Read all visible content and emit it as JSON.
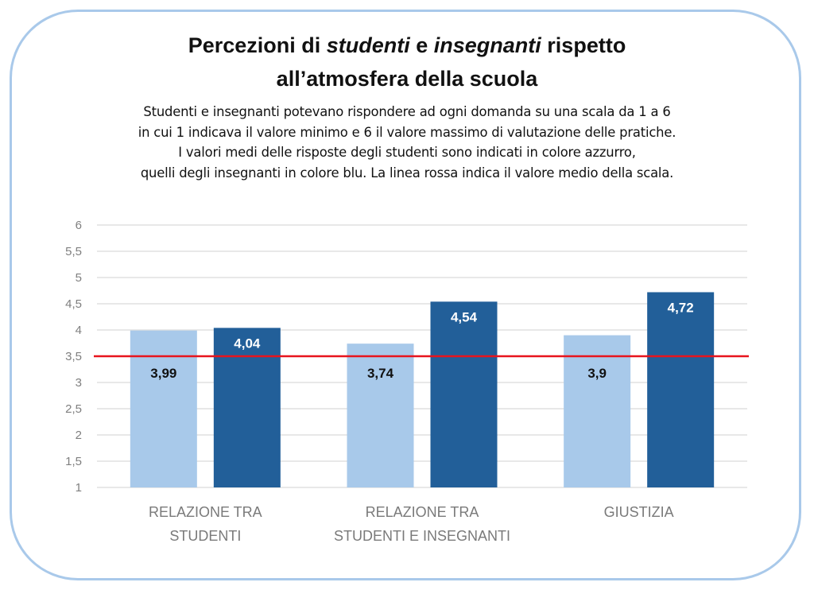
{
  "title": {
    "part1": "Percezioni di ",
    "italic1": "studenti",
    "part2": " e ",
    "italic2": "insegnanti",
    "part3": " rispetto",
    "line2": "all’atmosfera della scuola"
  },
  "description": [
    "Studenti e insegnanti potevano rispondere ad ogni domanda su una scala da 1 a 6",
    "in cui 1 indicava il valore minimo e 6 il valore massimo di valutazione delle pratiche.",
    "I valori medi delle risposte degli studenti sono indicati in colore azzurro,",
    "quelli degli insegnanti in colore blu. La linea rossa indica il valore medio della scala."
  ],
  "colors": {
    "frame": "#a9c9ea",
    "students": "#a8c9ea",
    "teachers": "#225f99",
    "reference_line": "#e8141d",
    "grid": "#d9d9d9"
  },
  "chart_data": {
    "type": "bar",
    "title": "Percezioni di studenti e insegnanti rispetto all’atmosfera della scuola",
    "categories": [
      [
        "RELAZIONE TRA",
        "STUDENTI"
      ],
      [
        "RELAZIONE TRA",
        "STUDENTI E INSEGNANTI"
      ],
      [
        "GIUSTIZIA"
      ]
    ],
    "series": [
      {
        "name": "Studenti",
        "color": "#a8c9ea",
        "values": [
          3.99,
          3.74,
          3.9
        ],
        "labels": [
          "3,99",
          "3,74",
          "3,9"
        ],
        "label_color": "#111111"
      },
      {
        "name": "Insegnanti",
        "color": "#225f99",
        "values": [
          4.04,
          4.54,
          4.72
        ],
        "labels": [
          "4,04",
          "4,54",
          "4,72"
        ],
        "label_color": "#ffffff"
      }
    ],
    "ylim": [
      1,
      6
    ],
    "yticks": [
      1,
      1.5,
      2,
      2.5,
      3,
      3.5,
      4,
      4.5,
      5,
      5.5,
      6
    ],
    "ytick_labels": [
      "1",
      "1,5",
      "2",
      "2,5",
      "3",
      "3,5",
      "4",
      "4,5",
      "5",
      "5,5",
      "6"
    ],
    "reference_line": {
      "value": 3.5,
      "color": "#e8141d"
    },
    "grid": true,
    "xlabel": "",
    "ylabel": ""
  }
}
